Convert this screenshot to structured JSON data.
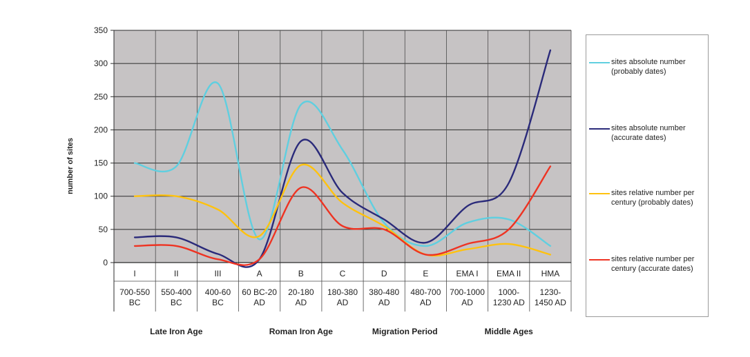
{
  "chart_data": {
    "type": "line",
    "ylabel": "number of sites",
    "ylim": [
      0,
      350
    ],
    "yticks": [
      0,
      50,
      100,
      150,
      200,
      250,
      300,
      350
    ],
    "grid": true,
    "legend_position": "right",
    "categories": [
      {
        "code": "I",
        "range": [
          "700-550",
          "BC"
        ]
      },
      {
        "code": "II",
        "range": [
          "550-400",
          "BC"
        ]
      },
      {
        "code": "III",
        "range": [
          "400-60",
          "BC"
        ]
      },
      {
        "code": "A",
        "range": [
          "60 BC-20",
          "AD"
        ]
      },
      {
        "code": "B",
        "range": [
          "20-180",
          "AD"
        ]
      },
      {
        "code": "C",
        "range": [
          "180-380",
          "AD"
        ]
      },
      {
        "code": "D",
        "range": [
          "380-480",
          "AD"
        ]
      },
      {
        "code": "E",
        "range": [
          "480-700",
          "AD"
        ]
      },
      {
        "code": "EMA I",
        "range": [
          "700-1000",
          "AD"
        ]
      },
      {
        "code": "EMA II",
        "range": [
          "1000-",
          "1230 AD"
        ]
      },
      {
        "code": "HMA",
        "range": [
          "1230-",
          "1450 AD"
        ]
      }
    ],
    "periods": [
      {
        "label": "Late Iron Age",
        "from": 0,
        "to": 2
      },
      {
        "label": "Roman Iron Age",
        "from": 3,
        "to": 5
      },
      {
        "label": "Migration Period",
        "from": 6,
        "to": 7
      },
      {
        "label": "Middle Ages",
        "from": 8,
        "to": 10
      }
    ],
    "series": [
      {
        "name": "sites absolute number (probably dates)",
        "color": "#5fcfe0",
        "values": [
          150,
          145,
          270,
          35,
          238,
          170,
          60,
          25,
          60,
          65,
          25
        ]
      },
      {
        "name": "sites absolute number (accurate dates)",
        "color": "#2a2a7a",
        "values": [
          38,
          38,
          13,
          5,
          183,
          105,
          65,
          30,
          85,
          120,
          320
        ]
      },
      {
        "name": "sites relative number per century (probably dates)",
        "color": "#ffc20e",
        "values": [
          100,
          100,
          80,
          40,
          147,
          90,
          55,
          12,
          20,
          28,
          12
        ]
      },
      {
        "name": "sites relative number per century (accurate dates)",
        "color": "#ee3322",
        "values": [
          25,
          25,
          5,
          5,
          113,
          55,
          50,
          12,
          28,
          50,
          145
        ]
      }
    ]
  }
}
